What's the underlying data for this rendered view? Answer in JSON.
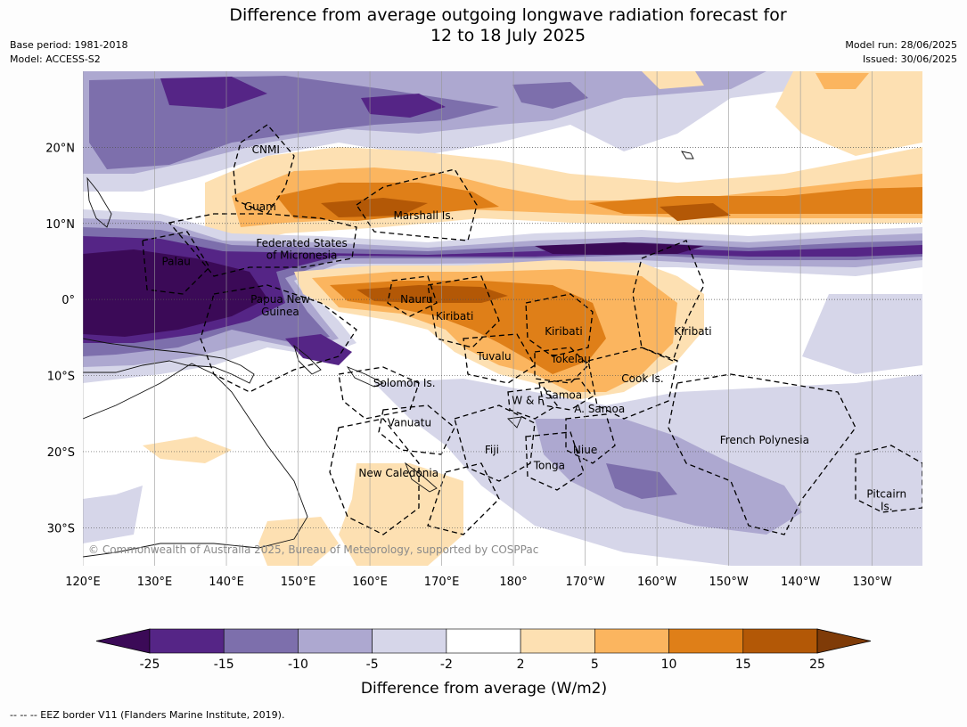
{
  "header": {
    "title_line1": "Difference from average outgoing longwave radiation forecast for",
    "title_line2": "12 to 18 July 2025",
    "base_period": "Base period: 1981-2018",
    "model": "Model: ACCESS-S2",
    "model_run": "Model run: 28/06/2025",
    "issued": "Issued: 30/06/2025"
  },
  "map": {
    "region": "Western and central tropical Pacific",
    "lon_range": [
      120,
      237
    ],
    "lat_range": [
      -35,
      30
    ],
    "longitude_labels": [
      "120°E",
      "130°E",
      "140°E",
      "150°E",
      "160°E",
      "170°E",
      "180°",
      "170°W",
      "160°W",
      "150°W",
      "140°W",
      "130°W"
    ],
    "latitude_labels": [
      "20°N",
      "10°N",
      "0°",
      "10°S",
      "20°S",
      "30°S"
    ],
    "place_labels": [
      {
        "name": "CNMI",
        "lon": 145.5,
        "lat": 19.7
      },
      {
        "name": "Guam",
        "lon": 144.7,
        "lat": 12.2
      },
      {
        "name": "Marshall Is.",
        "lon": 167.5,
        "lat": 11
      },
      {
        "name": "Federated States",
        "lon": 150.5,
        "lat": 7.4
      },
      {
        "name": "of Micronesia",
        "lon": 150.5,
        "lat": 5.8
      },
      {
        "name": "Palau",
        "lon": 133,
        "lat": 5
      },
      {
        "name": "Papua New",
        "lon": 147.5,
        "lat": 0
      },
      {
        "name": "Guinea",
        "lon": 147.5,
        "lat": -1.6
      },
      {
        "name": "Nauru",
        "lon": 166.5,
        "lat": 0
      },
      {
        "name": "Kiribati",
        "lon": 171.8,
        "lat": -2.2
      },
      {
        "name": "Kiribati",
        "lon": 187,
        "lat": -4.2
      },
      {
        "name": "Kiribati",
        "lon": 205,
        "lat": -4.2
      },
      {
        "name": "Tuvalu",
        "lon": 177.3,
        "lat": -7.5
      },
      {
        "name": "Tokelau",
        "lon": 188,
        "lat": -7.8
      },
      {
        "name": "Cook Is.",
        "lon": 198,
        "lat": -10.4
      },
      {
        "name": "Solomon Is.",
        "lon": 164.8,
        "lat": -11
      },
      {
        "name": "W & F",
        "lon": 182,
        "lat": -13.3
      },
      {
        "name": "Samoa",
        "lon": 187,
        "lat": -12.6
      },
      {
        "name": "A. Samoa",
        "lon": 192,
        "lat": -14.4
      },
      {
        "name": "Vanuatu",
        "lon": 165.5,
        "lat": -16.2
      },
      {
        "name": "Fiji",
        "lon": 177,
        "lat": -19.8
      },
      {
        "name": "Niue",
        "lon": 190,
        "lat": -19.8
      },
      {
        "name": "Tonga",
        "lon": 185,
        "lat": -21.8
      },
      {
        "name": "French Polynesia",
        "lon": 215,
        "lat": -18.5
      },
      {
        "name": "New Caledonia",
        "lon": 164,
        "lat": -22.8
      },
      {
        "name": "Pitcairn",
        "lon": 232,
        "lat": -25.6
      },
      {
        "name": "Is.",
        "lon": 232,
        "lat": -27.2
      }
    ],
    "credit": "© Commonwealth of Australia 2025, Bureau of Meteorology, supported by COSPPac",
    "anomaly_features": [
      {
        "sign": "negative",
        "level": "-25 to -15",
        "desc": "band along 5°N and large area over Palau / PNG / Bismarck Sea"
      },
      {
        "sign": "negative",
        "level": "-10 to -5",
        "desc": "broad area 20-30°N and across SW Pacific 15-30°S"
      },
      {
        "sign": "positive",
        "level": "10 to 15",
        "desc": "band 8-15°N and equatorial band 150°E-170°W"
      }
    ]
  },
  "colorbar": {
    "ticks": [
      "-25",
      "-15",
      "-10",
      "-5",
      "-2",
      "2",
      "5",
      "10",
      "15",
      "25"
    ],
    "colors": [
      "#3b0a57",
      "#552586",
      "#7d6fac",
      "#ada8d0",
      "#d6d6e9",
      "#ffffff",
      "#fde0b2",
      "#fbb55f",
      "#df7f18",
      "#b35806",
      "#7f3b08"
    ],
    "label": "Difference from average (W/m2)"
  },
  "footer": {
    "eez_note": "--  --  -- EEZ border V11 (Flanders Marine Institute, 2019)."
  }
}
